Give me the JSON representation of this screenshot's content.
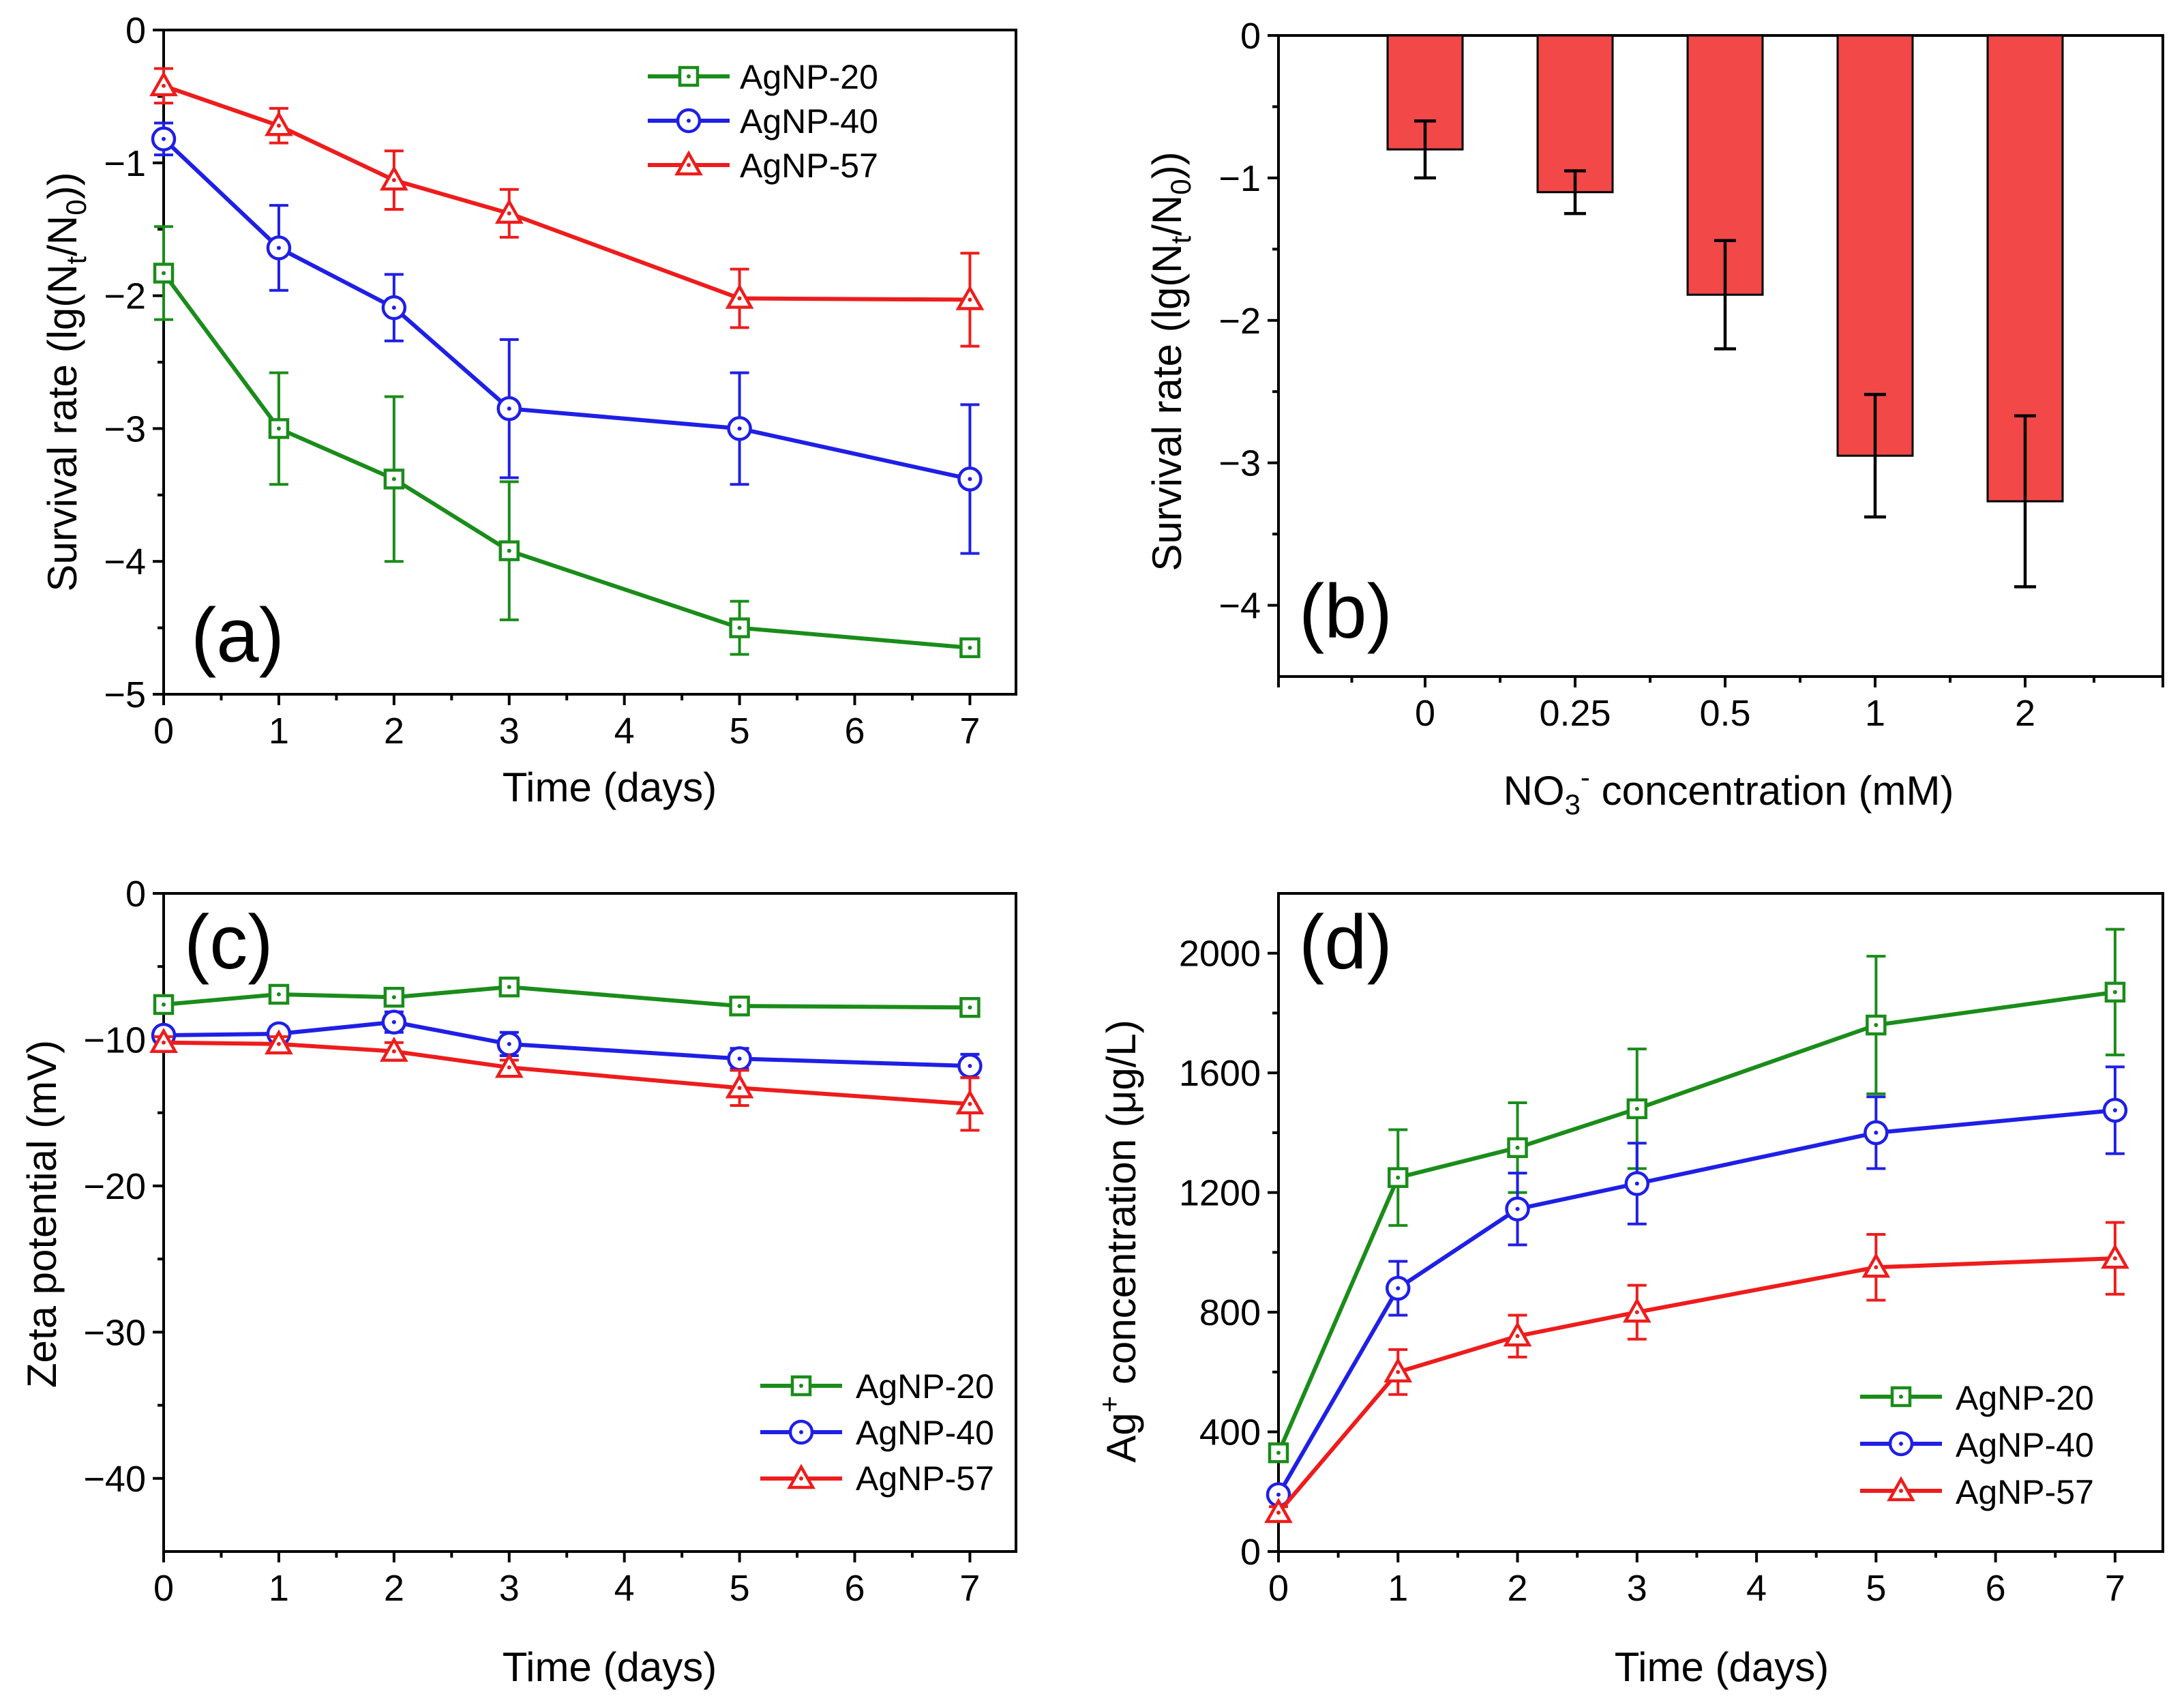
{
  "colors": {
    "AgNP-20": "#1a8c1a",
    "AgNP-40": "#1f1fe6",
    "AgNP-57": "#ee1c1c",
    "bar_fill": "#f24848"
  },
  "chart_data": [
    {
      "id": "a",
      "type": "line",
      "panel_label": "(a)",
      "xlabel": "Time (days)",
      "ylabel": "Survival rate (lg(N_t/N_0))",
      "ylabel_parts": {
        "pre": "Survival rate (lg(N",
        "sub1": "t",
        "mid": "/N",
        "sub2": "0",
        "post": "))"
      },
      "xlim": [
        0,
        7.4
      ],
      "ylim": [
        -5,
        0
      ],
      "xticks": [
        0,
        1,
        2,
        3,
        4,
        5,
        6,
        7
      ],
      "yticks": [
        0,
        -1,
        -2,
        -3,
        -4,
        -5
      ],
      "x": [
        0,
        1,
        2,
        3,
        5,
        7
      ],
      "legend_position": "top-right",
      "series": [
        {
          "name": "AgNP-20",
          "marker": "square",
          "values": [
            -1.83,
            -3.0,
            -3.38,
            -3.92,
            -4.5,
            -4.65
          ],
          "errors": [
            0.35,
            0.42,
            0.62,
            0.52,
            0.2,
            0.04
          ]
        },
        {
          "name": "AgNP-40",
          "marker": "circle",
          "values": [
            -0.82,
            -1.64,
            -2.09,
            -2.85,
            -3.0,
            -3.38
          ],
          "errors": [
            0.12,
            0.32,
            0.25,
            0.52,
            0.42,
            0.56
          ]
        },
        {
          "name": "AgNP-57",
          "marker": "triangle",
          "values": [
            -0.42,
            -0.72,
            -1.13,
            -1.38,
            -2.02,
            -2.03
          ],
          "errors": [
            0.13,
            0.13,
            0.22,
            0.18,
            0.22,
            0.35
          ]
        }
      ]
    },
    {
      "id": "b",
      "type": "bar",
      "panel_label": "(b)",
      "xlabel": "NO3- concentration (mM)",
      "xlabel_parts": {
        "pre": "NO",
        "sub": "3",
        "sup": "-",
        "post": " concentration (mM)"
      },
      "ylabel": "Survival rate (lg(N_t/N_0))",
      "ylabel_parts": {
        "pre": "Survival rate (lg(N",
        "sub1": "t",
        "mid": "/N",
        "sub2": "0",
        "post": "))"
      },
      "ylim": [
        -4.5,
        0
      ],
      "yticks": [
        0,
        -1,
        -2,
        -3,
        -4
      ],
      "categories": [
        "0",
        "0.25",
        "0.5",
        "1",
        "2"
      ],
      "values": [
        -0.8,
        -1.1,
        -1.82,
        -2.95,
        -3.27
      ],
      "errors": [
        0.2,
        0.15,
        0.38,
        0.43,
        0.6
      ]
    },
    {
      "id": "c",
      "type": "line",
      "panel_label": "(c)",
      "xlabel": "Time (days)",
      "ylabel": "Zeta potential (mV)",
      "xlim": [
        0,
        7.4
      ],
      "ylim": [
        -45,
        0
      ],
      "xticks": [
        0,
        1,
        2,
        3,
        4,
        5,
        6,
        7
      ],
      "yticks": [
        0,
        -10,
        -20,
        -30,
        -40
      ],
      "x": [
        0,
        1,
        2,
        3,
        5,
        7
      ],
      "legend_position": "bottom-right",
      "series": [
        {
          "name": "AgNP-20",
          "marker": "square",
          "values": [
            -7.6,
            -6.9,
            -7.1,
            -6.4,
            -7.7,
            -7.8
          ],
          "errors": [
            0.3,
            0.3,
            0.3,
            0.4,
            0.3,
            0.3
          ]
        },
        {
          "name": "AgNP-40",
          "marker": "circle",
          "values": [
            -9.7,
            -9.6,
            -8.8,
            -10.3,
            -11.3,
            -11.8
          ],
          "errors": [
            0.4,
            0.5,
            0.7,
            0.8,
            0.7,
            0.8
          ]
        },
        {
          "name": "AgNP-57",
          "marker": "triangle",
          "values": [
            -10.2,
            -10.3,
            -10.8,
            -11.9,
            -13.3,
            -14.4
          ],
          "errors": [
            0.4,
            0.5,
            0.6,
            0.5,
            1.2,
            1.8
          ]
        }
      ]
    },
    {
      "id": "d",
      "type": "line",
      "panel_label": "(d)",
      "xlabel": "Time (days)",
      "ylabel": "Ag+ concentration (μg/L)",
      "ylabel_parts": {
        "pre": "Ag",
        "sup": "+",
        "post": " concentration (μg/L)"
      },
      "xlim": [
        0,
        7.4
      ],
      "ylim": [
        0,
        2200
      ],
      "xticks": [
        0,
        1,
        2,
        3,
        4,
        5,
        6,
        7
      ],
      "yticks": [
        0,
        400,
        800,
        1200,
        1600,
        2000
      ],
      "x": [
        0,
        1,
        2,
        3,
        5,
        7
      ],
      "legend_position": "bottom-right",
      "series": [
        {
          "name": "AgNP-20",
          "marker": "square",
          "values": [
            330,
            1250,
            1350,
            1480,
            1760,
            1870
          ],
          "errors": [
            30,
            160,
            150,
            200,
            230,
            210
          ]
        },
        {
          "name": "AgNP-40",
          "marker": "circle",
          "values": [
            190,
            880,
            1145,
            1230,
            1400,
            1475
          ],
          "errors": [
            20,
            90,
            120,
            135,
            120,
            145
          ]
        },
        {
          "name": "AgNP-57",
          "marker": "triangle",
          "values": [
            130,
            600,
            720,
            800,
            950,
            980
          ],
          "errors": [
            20,
            75,
            70,
            90,
            110,
            120
          ]
        }
      ]
    }
  ]
}
